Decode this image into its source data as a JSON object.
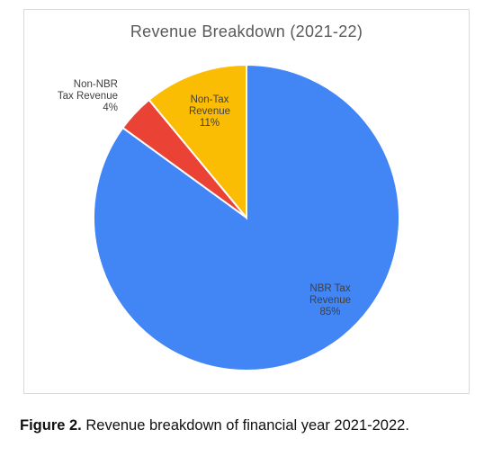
{
  "chart_data": {
    "type": "pie",
    "title": "Revenue Breakdown (2021-22)",
    "slices": [
      {
        "label_lines": [
          "NBR Tax",
          "Revenue"
        ],
        "value": 85,
        "value_label": "85%",
        "color": "#4285f4"
      },
      {
        "label_lines": [
          "Non-NBR",
          "Tax Revenue"
        ],
        "value": 4,
        "value_label": "4%",
        "color": "#ea4335"
      },
      {
        "label_lines": [
          "Non-Tax",
          "Revenue"
        ],
        "value": 11,
        "value_label": "11%",
        "color": "#fbbc04"
      }
    ],
    "legend": "none"
  },
  "caption": {
    "prefix": "Figure 2.",
    "text": " Revenue breakdown of financial year 2021-2022."
  }
}
